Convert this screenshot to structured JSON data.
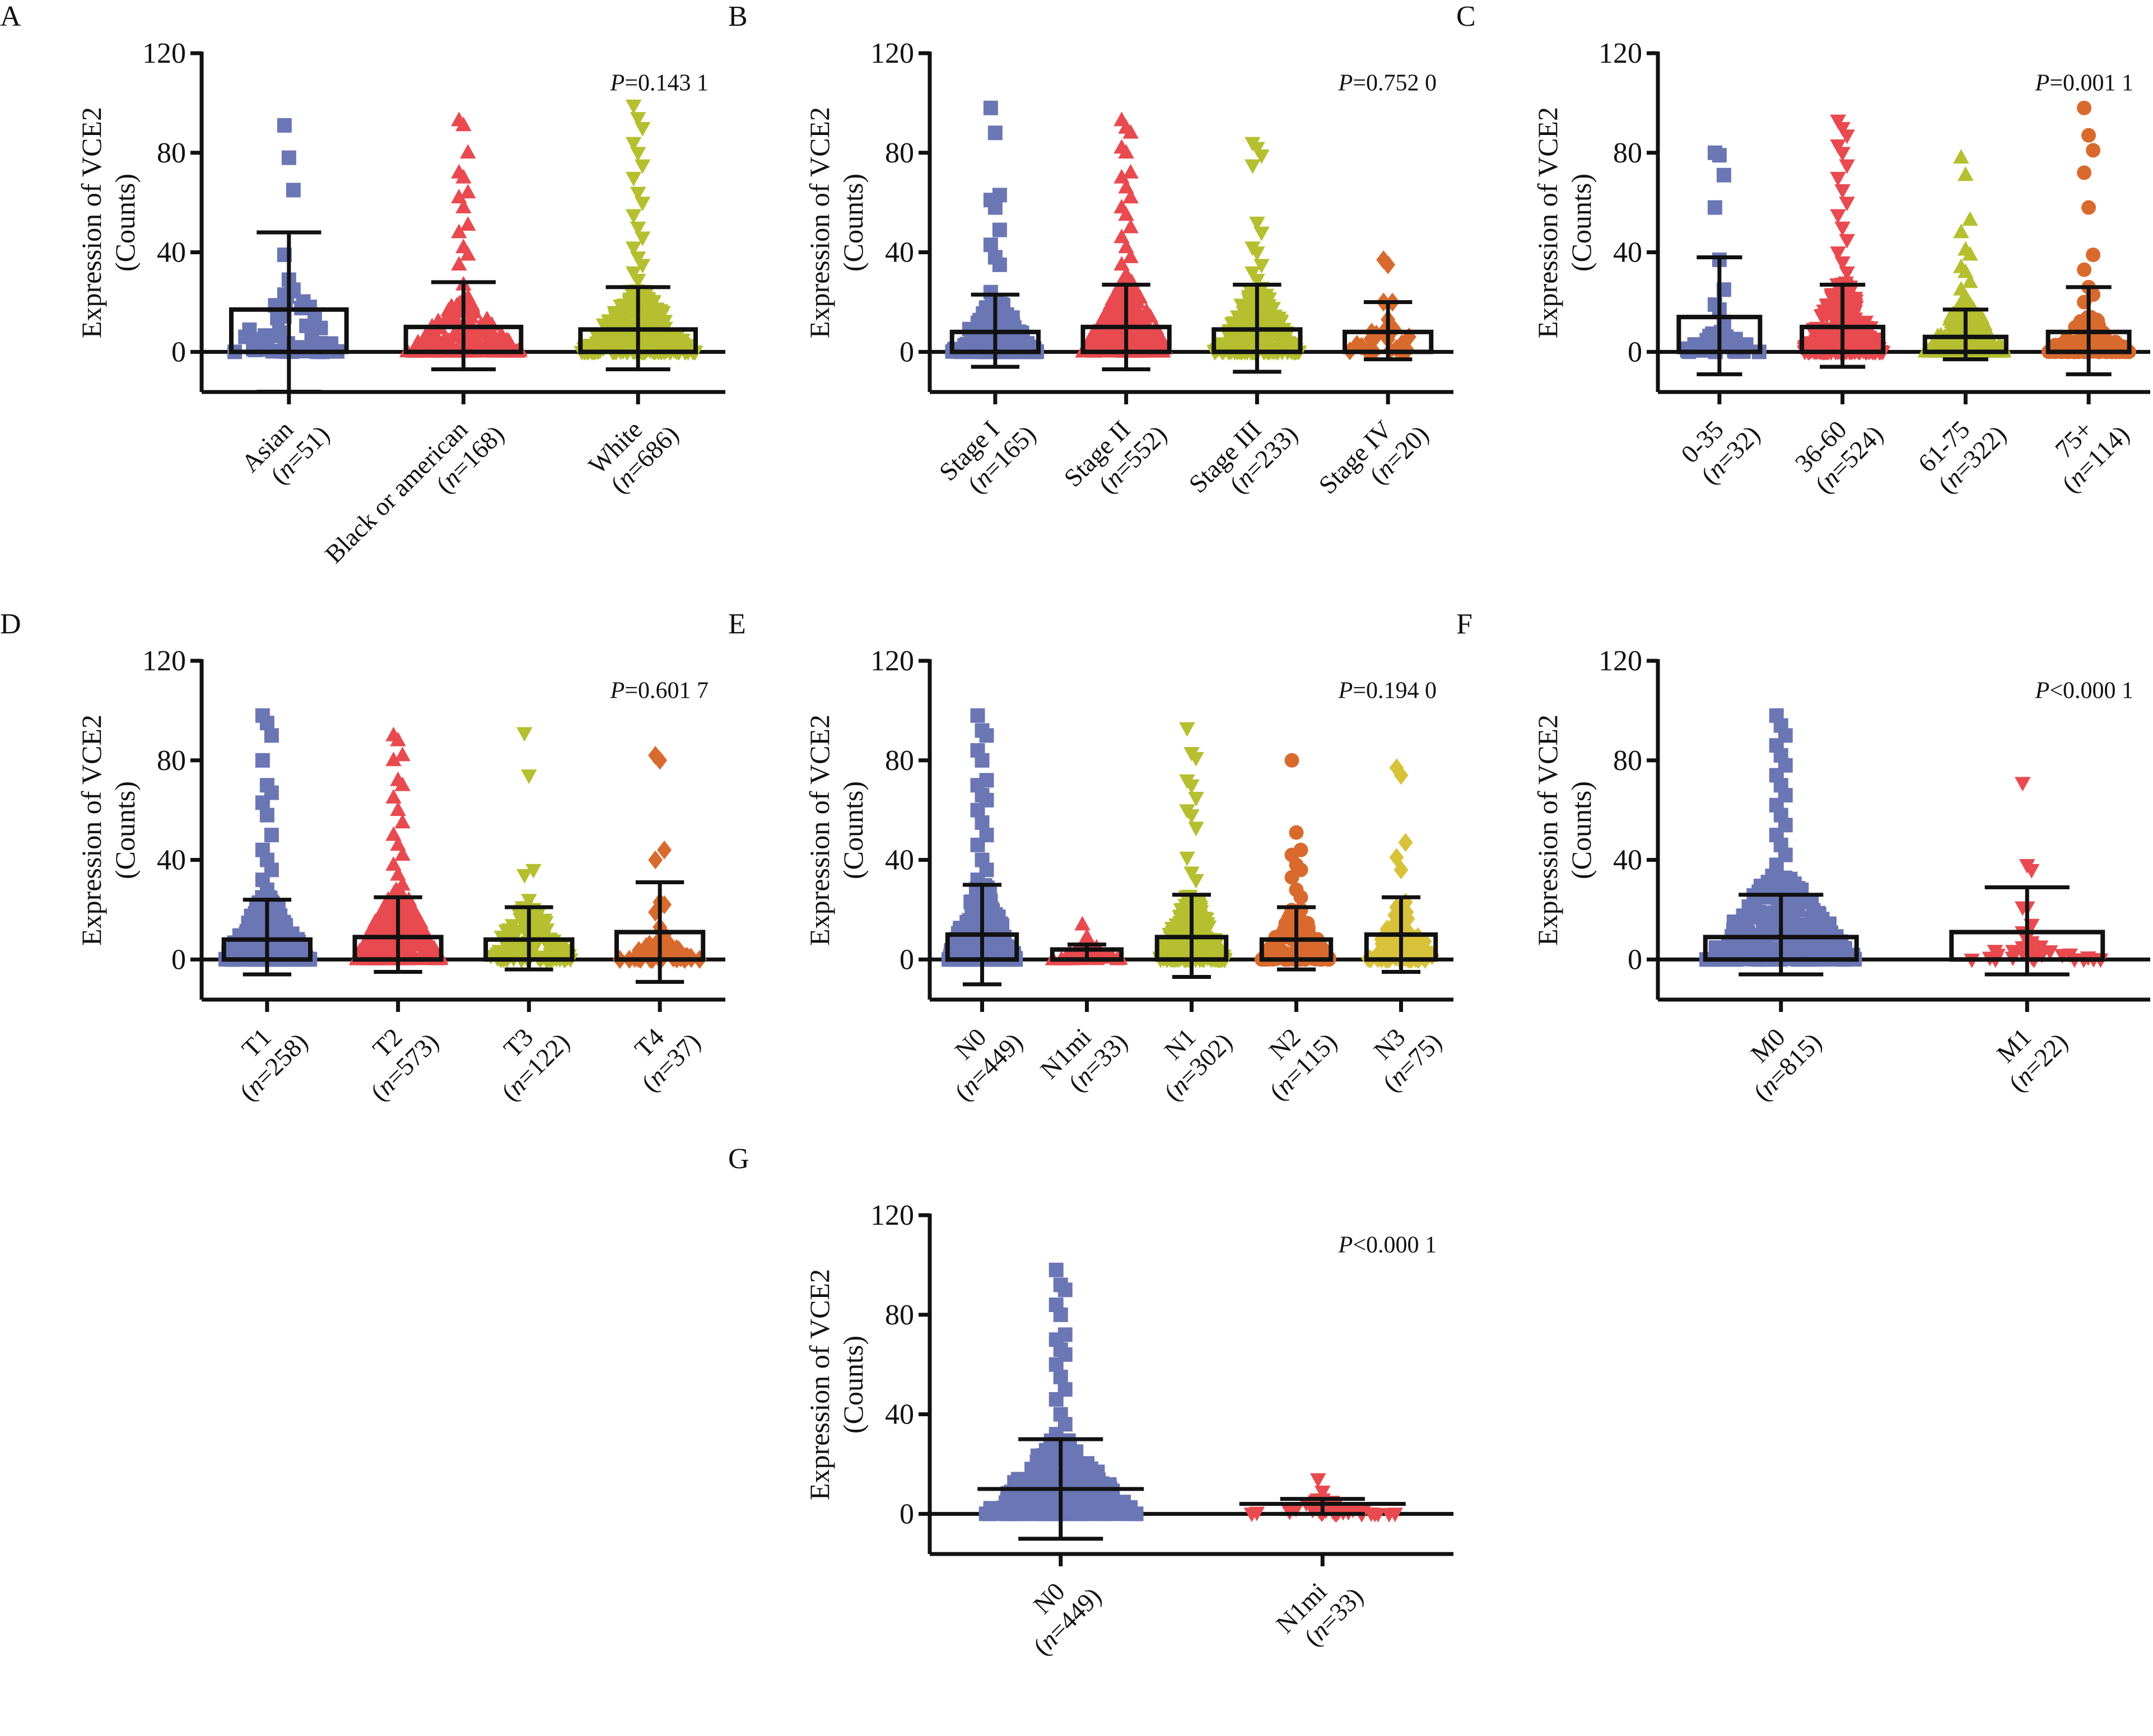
{
  "figure": {
    "colors": {
      "blue": "#6b76b5",
      "red": "#e84a4f",
      "olive": "#b5bf2f",
      "orange": "#d96a2e",
      "yellow": "#d8c23a",
      "axis": "#111111"
    }
  },
  "chart_data": [
    {
      "panel": "A",
      "type": "bar+scatter",
      "ylabel": [
        "Expression of VCE2",
        "(Counts)"
      ],
      "ylim": [
        -15,
        120
      ],
      "yticks": [
        0,
        40,
        80,
        120
      ],
      "pvalue": {
        "symbol": "P",
        "text": "=0.143 1"
      },
      "groups": [
        {
          "name": "Asian",
          "n": "(n=51)",
          "mean": 17,
          "err_low": -16,
          "err_high": 48,
          "marker": "square",
          "color": "blue",
          "bulk_max": 25,
          "outliers": [
            91,
            78,
            65,
            39,
            29,
            25,
            23
          ]
        },
        {
          "name": "Black or american",
          "n": "(n=168)",
          "mean": 10,
          "err_low": -7,
          "err_high": 28,
          "marker": "triangle-up",
          "color": "red",
          "bulk_max": 20,
          "outliers": [
            93,
            91,
            80,
            72,
            70,
            64,
            62,
            58,
            51,
            48,
            42,
            39,
            35,
            27,
            22
          ]
        },
        {
          "name": "White",
          "n": "(n=686)",
          "mean": 9,
          "err_low": -7,
          "err_high": 26,
          "marker": "triangle-down",
          "color": "olive",
          "bulk_max": 25,
          "outliers": [
            99,
            94,
            90,
            84,
            80,
            75,
            70,
            64,
            60,
            55,
            50,
            46,
            42,
            38,
            35,
            32,
            29
          ]
        }
      ]
    },
    {
      "panel": "B",
      "type": "bar+scatter",
      "ylabel": [
        "Expression of VCE2",
        "(Counts)"
      ],
      "ylim": [
        -15,
        120
      ],
      "yticks": [
        0,
        40,
        80,
        120
      ],
      "pvalue": {
        "symbol": "P",
        "text": "=0.752 0"
      },
      "groups": [
        {
          "name": "Stage I",
          "n": "(n=165)",
          "mean": 8,
          "err_low": -6,
          "err_high": 23,
          "marker": "square",
          "color": "blue",
          "bulk_max": 20,
          "outliers": [
            98,
            88,
            63,
            61,
            58,
            49,
            43,
            38,
            35,
            24
          ]
        },
        {
          "name": "Stage II",
          "n": "(n=552)",
          "mean": 10,
          "err_low": -7,
          "err_high": 27,
          "marker": "triangle-up",
          "color": "red",
          "bulk_max": 28,
          "outliers": [
            93,
            90,
            88,
            82,
            80,
            72,
            70,
            66,
            62,
            58,
            55,
            50,
            46,
            42,
            38,
            35,
            31
          ]
        },
        {
          "name": "Stage III",
          "n": "(n=233)",
          "mean": 9,
          "err_low": -8,
          "err_high": 27,
          "marker": "triangle-down",
          "color": "olive",
          "bulk_max": 26,
          "outliers": [
            84,
            82,
            79,
            75,
            52,
            48,
            42,
            40,
            35,
            32,
            29
          ]
        },
        {
          "name": "Stage IV",
          "n": "(n=20)",
          "mean": 8,
          "err_low": -3,
          "err_high": 20,
          "marker": "diamond",
          "color": "orange",
          "bulk_max": 13,
          "outliers": [
            37,
            35,
            20,
            20,
            13,
            10,
            8,
            5
          ]
        }
      ]
    },
    {
      "panel": "C",
      "type": "bar+scatter",
      "ylabel": [
        "Expression of VCE2",
        "(Counts)"
      ],
      "ylim": [
        -15,
        120
      ],
      "yticks": [
        0,
        40,
        80,
        120
      ],
      "pvalue": {
        "symbol": "P",
        "text": "=0.001 1"
      },
      "groups": [
        {
          "name": "0-35",
          "n": "(n=32)",
          "mean": 14,
          "err_low": -9,
          "err_high": 38,
          "marker": "square",
          "color": "blue",
          "bulk_max": 8,
          "outliers": [
            80,
            79,
            71,
            58,
            37,
            25,
            19,
            17,
            12
          ]
        },
        {
          "name": "36-60",
          "n": "(n=524)",
          "mean": 10,
          "err_low": -6,
          "err_high": 27,
          "marker": "triangle-down",
          "color": "red",
          "bulk_max": 28,
          "outliers": [
            93,
            90,
            87,
            83,
            80,
            75,
            70,
            65,
            60,
            55,
            50,
            45,
            40,
            36,
            32
          ]
        },
        {
          "name": "61-75",
          "n": "(n=322)",
          "mean": 6,
          "err_low": -3,
          "err_high": 17,
          "marker": "triangle-up",
          "color": "olive",
          "bulk_max": 20,
          "outliers": [
            78,
            71,
            53,
            48,
            41,
            39,
            34,
            32,
            28,
            25,
            22
          ]
        },
        {
          "name": "75+",
          "n": "(n=114)",
          "mean": 8,
          "err_low": -9,
          "err_high": 26,
          "marker": "circle",
          "color": "orange",
          "bulk_max": 14,
          "outliers": [
            98,
            87,
            81,
            72,
            58,
            39,
            33,
            26,
            23,
            20
          ]
        }
      ]
    },
    {
      "panel": "D",
      "type": "bar+scatter",
      "ylabel": [
        "Expression of VCE2",
        "(Counts)"
      ],
      "ylim": [
        -15,
        120
      ],
      "yticks": [
        0,
        40,
        80,
        120
      ],
      "pvalue": {
        "symbol": "P",
        "text": "=0.601 7"
      },
      "groups": [
        {
          "name": "T1",
          "n": "(n=258)",
          "mean": 8,
          "err_low": -6,
          "err_high": 24,
          "marker": "square",
          "color": "blue",
          "bulk_max": 25,
          "outliers": [
            98,
            95,
            90,
            80,
            70,
            67,
            63,
            58,
            50,
            44,
            40,
            36,
            32,
            28
          ]
        },
        {
          "name": "T2",
          "n": "(n=573)",
          "mean": 9,
          "err_low": -5,
          "err_high": 25,
          "marker": "triangle-up",
          "color": "red",
          "bulk_max": 28,
          "outliers": [
            90,
            88,
            82,
            80,
            72,
            70,
            65,
            60,
            55,
            50,
            46,
            42,
            38,
            34,
            30
          ]
        },
        {
          "name": "T3",
          "n": "(n=122)",
          "mean": 8,
          "err_low": -4,
          "err_high": 21,
          "marker": "triangle-down",
          "color": "olive",
          "bulk_max": 22,
          "outliers": [
            91,
            74,
            36,
            34,
            24
          ]
        },
        {
          "name": "T4",
          "n": "(n=37)",
          "mean": 11,
          "err_low": -9,
          "err_high": 31,
          "marker": "diamond",
          "color": "orange",
          "bulk_max": 8,
          "outliers": [
            82,
            80,
            44,
            40,
            23,
            22,
            19,
            13,
            10,
            6,
            5
          ]
        }
      ]
    },
    {
      "panel": "E",
      "type": "bar+scatter",
      "ylabel": [
        "Expression of VCE2",
        "(Counts)"
      ],
      "ylim": [
        -15,
        120
      ],
      "yticks": [
        0,
        40,
        80,
        120
      ],
      "pvalue": {
        "symbol": "P",
        "text": "=0.194 0"
      },
      "groups": [
        {
          "name": "N0",
          "n": "(n=449)",
          "mean": 10,
          "err_low": -10,
          "err_high": 30,
          "marker": "square",
          "color": "blue",
          "bulk_max": 30,
          "outliers": [
            98,
            92,
            90,
            84,
            80,
            72,
            70,
            66,
            64,
            60,
            55,
            50,
            46,
            40,
            36,
            32
          ]
        },
        {
          "name": "N1mi",
          "n": "(n=33)",
          "mean": 4,
          "err_low": 0,
          "err_high": 6,
          "marker": "triangle-up",
          "color": "red",
          "bulk_max": 6,
          "outliers": [
            14,
            9
          ]
        },
        {
          "name": "N1",
          "n": "(n=302)",
          "mean": 9,
          "err_low": -7,
          "err_high": 26,
          "marker": "triangle-down",
          "color": "olive",
          "bulk_max": 26,
          "outliers": [
            93,
            83,
            81,
            72,
            70,
            65,
            60,
            58,
            53,
            41,
            35,
            32
          ]
        },
        {
          "name": "N2",
          "n": "(n=115)",
          "mean": 8,
          "err_low": -4,
          "err_high": 21,
          "marker": "circle",
          "color": "orange",
          "bulk_max": 20,
          "outliers": [
            80,
            51,
            44,
            42,
            38,
            36,
            33,
            28,
            25
          ]
        },
        {
          "name": "N3",
          "n": "(n=75)",
          "mean": 10,
          "err_low": -5,
          "err_high": 25,
          "marker": "diamond",
          "color": "yellow",
          "bulk_max": 20,
          "outliers": [
            77,
            74,
            47,
            41,
            36,
            23,
            21
          ]
        }
      ]
    },
    {
      "panel": "F",
      "type": "bar+scatter",
      "ylabel": [
        "Expression of VCE2",
        "(Counts)"
      ],
      "ylim": [
        -15,
        120
      ],
      "yticks": [
        0,
        40,
        80,
        120
      ],
      "pvalue": {
        "symbol": "P",
        "text": "<0.000 1"
      },
      "groups": [
        {
          "name": "M0",
          "n": "(n=815)",
          "mean": 9,
          "err_low": -6,
          "err_high": 26,
          "marker": "square",
          "color": "blue",
          "bulk_max": 35,
          "outliers": [
            98,
            94,
            90,
            86,
            82,
            78,
            74,
            70,
            66,
            62,
            58,
            54,
            50,
            46,
            42,
            38
          ]
        },
        {
          "name": "M1",
          "n": "(n=22)",
          "mean": 11,
          "err_low": -6,
          "err_high": 29,
          "marker": "triangle-down",
          "color": "red",
          "bulk_max": 6,
          "outliers": [
            71,
            38,
            36,
            21,
            21,
            14,
            11,
            9,
            7,
            5,
            5,
            4,
            3
          ]
        }
      ]
    },
    {
      "panel": "G",
      "type": "mean-sd+scatter",
      "ylabel": [
        "Expression of VCE2",
        "(Counts)"
      ],
      "ylim": [
        -15,
        120
      ],
      "yticks": [
        0,
        40,
        80,
        120
      ],
      "pvalue": {
        "symbol": "P",
        "text": "<0.000 1"
      },
      "groups": [
        {
          "name": "N0",
          "n": "(n=449)",
          "mean": 10,
          "err_low": -10,
          "err_high": 30,
          "marker": "square",
          "color": "blue",
          "bulk_max": 30,
          "outliers": [
            98,
            92,
            90,
            84,
            80,
            72,
            70,
            66,
            64,
            60,
            55,
            50,
            46,
            40,
            36,
            32
          ]
        },
        {
          "name": "N1mi",
          "n": "(n=33)",
          "mean": 4,
          "err_low": 0,
          "err_high": 6,
          "marker": "triangle-down",
          "color": "red",
          "bulk_max": 6,
          "outliers": [
            14,
            9
          ]
        }
      ]
    }
  ]
}
